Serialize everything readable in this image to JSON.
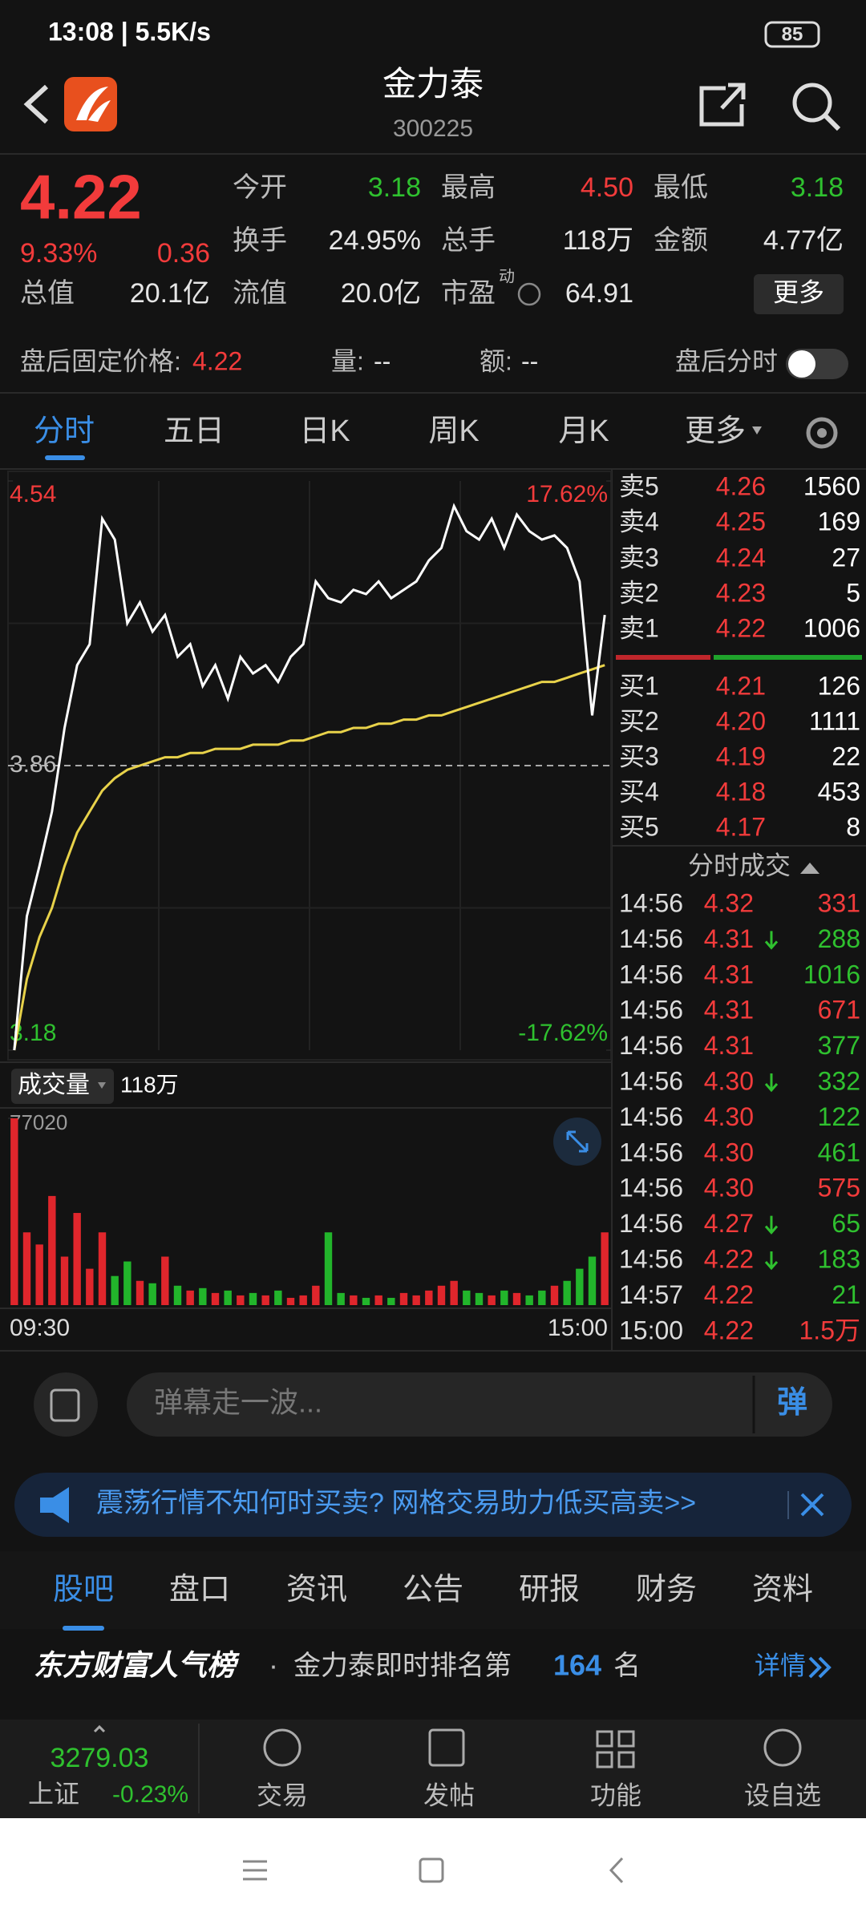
{
  "status": {
    "time": "13:08 | 5.5K/s",
    "battery": "85"
  },
  "header": {
    "title": "金力泰",
    "code": "300225"
  },
  "quote": {
    "price": "4.22",
    "pct": "9.33%",
    "change": "0.36",
    "fields": [
      {
        "label": "今开",
        "value": "3.18",
        "color": "#2fc12f"
      },
      {
        "label": "最高",
        "value": "4.50",
        "color": "#f23b3b"
      },
      {
        "label": "最低",
        "value": "3.18",
        "color": "#2fc12f"
      },
      {
        "label": "换手",
        "value": "24.95%",
        "color": "#e6e6e6"
      },
      {
        "label": "总手",
        "value": "118万",
        "color": "#e6e6e6"
      },
      {
        "label": "金额",
        "value": "4.77亿",
        "color": "#e6e6e6"
      },
      {
        "label": "总值",
        "value": "20.1亿",
        "color": "#e6e6e6"
      },
      {
        "label": "流值",
        "value": "20.0亿",
        "color": "#e6e6e6"
      },
      {
        "label": "市盈",
        "sup": "动",
        "value": "64.91",
        "color": "#e6e6e6"
      }
    ],
    "more": "更多"
  },
  "after_hours": {
    "label": "盘后固定价格:",
    "price": "4.22",
    "vol_label": "量:",
    "vol": "--",
    "amt_label": "额:",
    "amt": "--",
    "toggle": "盘后分时"
  },
  "tabs": [
    "分时",
    "五日",
    "日K",
    "周K",
    "月K",
    "更多"
  ],
  "intraday": {
    "ylim": [
      3.18,
      4.54
    ],
    "yticks": [
      3.18,
      3.86,
      4.54
    ],
    "pct_ticks": [
      {
        "value": -17.62,
        "label": "-17.62%"
      },
      {
        "value": 17.62,
        "label": "17.62%"
      }
    ],
    "x_labels": [
      "09:30",
      "15:00"
    ],
    "price": [
      3.18,
      3.5,
      3.62,
      3.75,
      3.95,
      4.1,
      4.15,
      4.45,
      4.4,
      4.2,
      4.25,
      4.18,
      4.22,
      4.12,
      4.15,
      4.05,
      4.1,
      4.02,
      4.12,
      4.08,
      4.1,
      4.06,
      4.12,
      4.15,
      4.3,
      4.26,
      4.25,
      4.28,
      4.27,
      4.3,
      4.26,
      4.28,
      4.3,
      4.35,
      4.38,
      4.48,
      4.42,
      4.4,
      4.45,
      4.38,
      4.46,
      4.42,
      4.4,
      4.41,
      4.38,
      4.3,
      3.98,
      4.22
    ],
    "avg": [
      3.18,
      3.35,
      3.45,
      3.52,
      3.62,
      3.7,
      3.75,
      3.8,
      3.83,
      3.85,
      3.86,
      3.87,
      3.88,
      3.88,
      3.89,
      3.89,
      3.9,
      3.9,
      3.9,
      3.91,
      3.91,
      3.91,
      3.92,
      3.92,
      3.93,
      3.94,
      3.94,
      3.95,
      3.95,
      3.96,
      3.96,
      3.97,
      3.97,
      3.98,
      3.98,
      3.99,
      4.0,
      4.01,
      4.02,
      4.03,
      4.04,
      4.05,
      4.06,
      4.06,
      4.07,
      4.08,
      4.09,
      4.1
    ]
  },
  "volume": {
    "label": "成交量",
    "total": "118万",
    "ylim": [
      0,
      77020
    ],
    "yticks": [
      77020
    ],
    "values": [
      77020,
      30000,
      25000,
      45000,
      20000,
      38000,
      15000,
      30000,
      12000,
      18000,
      10000,
      9000,
      20000,
      8000,
      6000,
      7000,
      5000,
      6000,
      4000,
      5000,
      4000,
      6000,
      3000,
      4000,
      8000,
      30000,
      5000,
      4000,
      3000,
      4000,
      3000,
      5000,
      4000,
      6000,
      8000,
      10000,
      6000,
      5000,
      4000,
      6000,
      5000,
      4000,
      6000,
      8000,
      10000,
      15000,
      20000,
      30000
    ]
  },
  "order_book": [
    {
      "label": "卖5",
      "price": "4.26",
      "qty": "1560"
    },
    {
      "label": "卖4",
      "price": "4.25",
      "qty": "169"
    },
    {
      "label": "卖3",
      "price": "4.24",
      "qty": "27"
    },
    {
      "label": "卖2",
      "price": "4.23",
      "qty": "5"
    },
    {
      "label": "卖1",
      "price": "4.22",
      "qty": "1006"
    },
    {
      "label": "买1",
      "price": "4.21",
      "qty": "126"
    },
    {
      "label": "买2",
      "price": "4.20",
      "qty": "1111"
    },
    {
      "label": "买3",
      "price": "4.19",
      "qty": "22"
    },
    {
      "label": "买4",
      "price": "4.18",
      "qty": "453"
    },
    {
      "label": "买5",
      "price": "4.17",
      "qty": "8"
    }
  ],
  "trades_title": "分时成交",
  "trades": [
    {
      "time": "14:56",
      "price": "4.32",
      "vol": "331",
      "color": "#f23b3b",
      "down": false
    },
    {
      "time": "14:56",
      "price": "4.31",
      "vol": "288",
      "color": "#2fc12f",
      "down": true
    },
    {
      "time": "14:56",
      "price": "4.31",
      "vol": "1016",
      "color": "#2fc12f",
      "down": false
    },
    {
      "time": "14:56",
      "price": "4.31",
      "vol": "671",
      "color": "#f23b3b",
      "down": false
    },
    {
      "time": "14:56",
      "price": "4.31",
      "vol": "377",
      "color": "#2fc12f",
      "down": false
    },
    {
      "time": "14:56",
      "price": "4.30",
      "vol": "332",
      "color": "#2fc12f",
      "down": true
    },
    {
      "time": "14:56",
      "price": "4.30",
      "vol": "122",
      "color": "#2fc12f",
      "down": false
    },
    {
      "time": "14:56",
      "price": "4.30",
      "vol": "461",
      "color": "#2fc12f",
      "down": false
    },
    {
      "time": "14:56",
      "price": "4.30",
      "vol": "575",
      "color": "#f23b3b",
      "down": false
    },
    {
      "time": "14:56",
      "price": "4.27",
      "vol": "65",
      "color": "#2fc12f",
      "down": true
    },
    {
      "time": "14:56",
      "price": "4.22",
      "vol": "183",
      "color": "#2fc12f",
      "down": true
    },
    {
      "time": "14:57",
      "price": "4.22",
      "vol": "21",
      "color": "#2fc12f",
      "down": false
    },
    {
      "time": "15:00",
      "price": "4.22",
      "vol": "1.5万",
      "color": "#f23b3b",
      "down": false
    }
  ],
  "comment": {
    "placeholder": "弹幕走一波...",
    "button": "弹"
  },
  "banner": "震荡行情不知何时买卖? 网格交易助力低买高卖>>",
  "bottom_tabs": [
    "股吧",
    "盘口",
    "资讯",
    "公告",
    "研报",
    "财务",
    "资料"
  ],
  "ranking": {
    "title": "东方财富人气榜",
    "dot": "·",
    "text": "金力泰即时排名第",
    "rank": "164",
    "suffix": "名",
    "link": "详情"
  },
  "nav": {
    "index_value": "3279.03",
    "index_name": "上证",
    "index_change": "-0.23%",
    "items": [
      "交易",
      "发帖",
      "功能",
      "设自选"
    ]
  }
}
